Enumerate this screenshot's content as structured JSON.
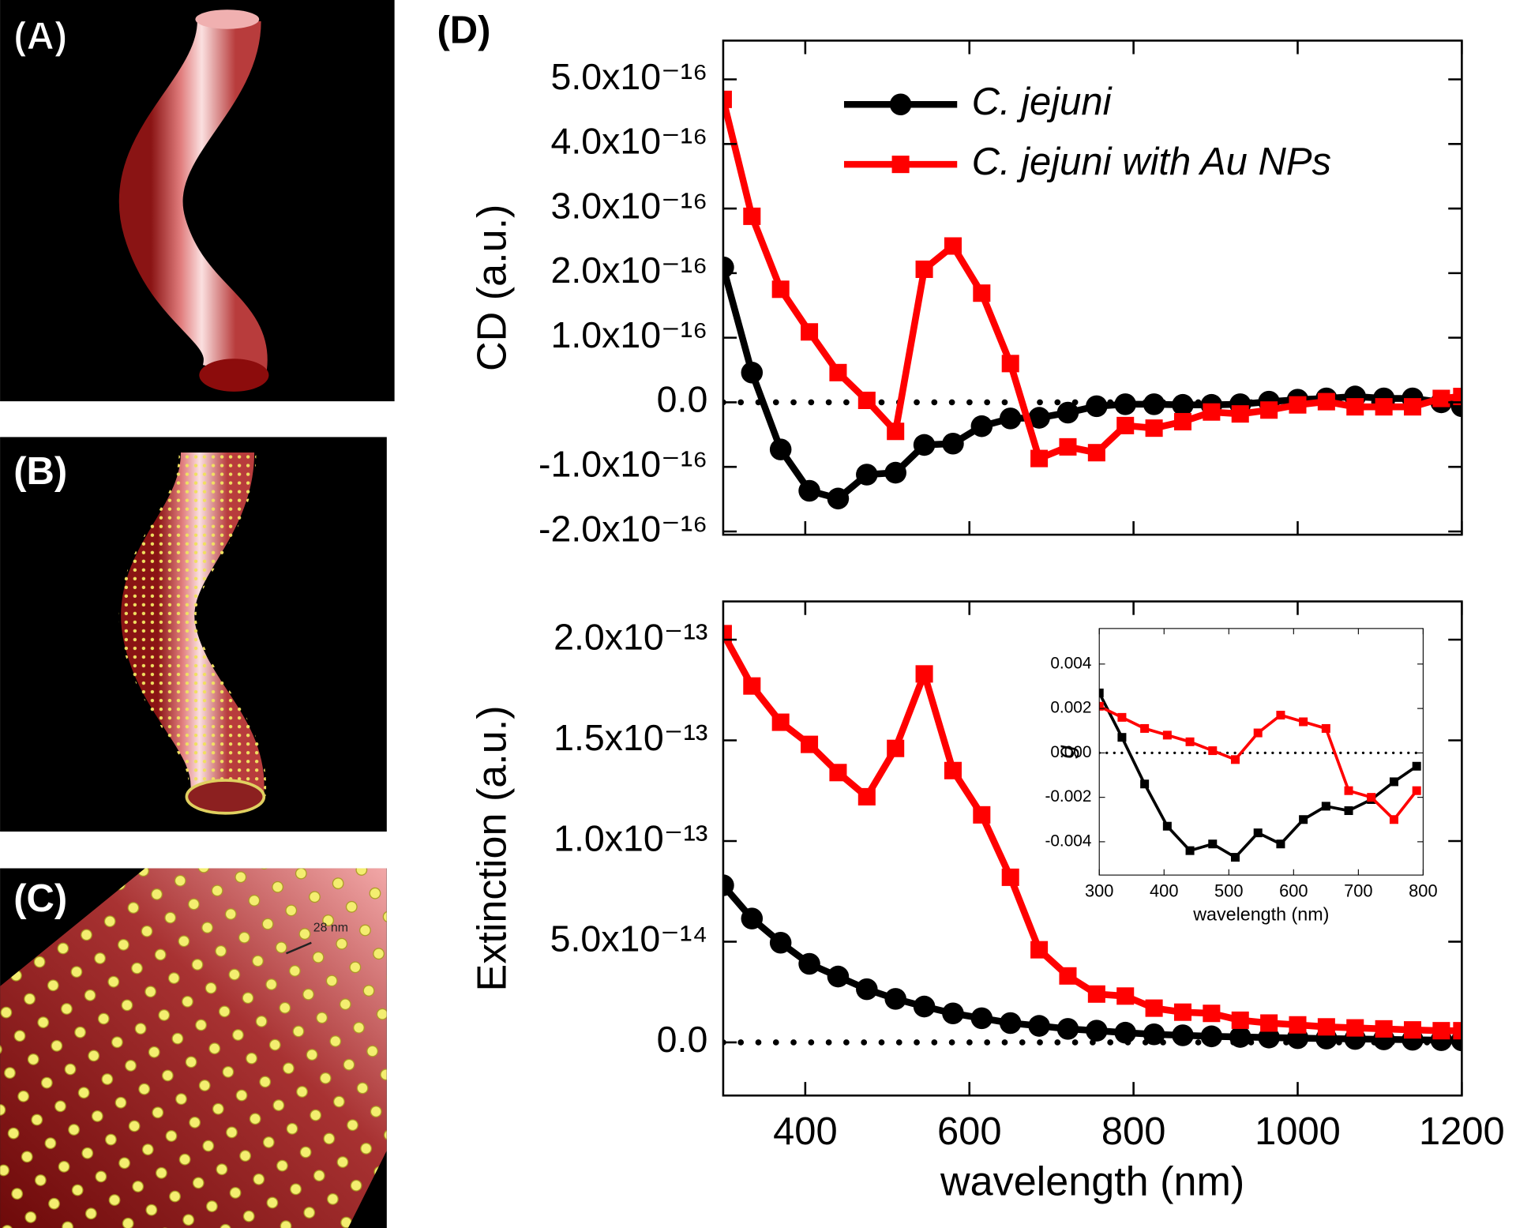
{
  "panels": {
    "labels": [
      "(A)",
      "(B)",
      "(C)",
      "(D)"
    ],
    "scale_label": "28 nm"
  },
  "chart_data": [
    {
      "type": "line",
      "ylabel": "CD (a.u.)",
      "legend": "top",
      "zero_line": true,
      "xtick_labels": false,
      "xlim": [
        300,
        1200
      ],
      "xticks": [
        400,
        600,
        800,
        1000,
        1200
      ],
      "ylim": [
        -2.05e-16,
        5.6e-16
      ],
      "yticks": [
        {
          "value": -2e-16,
          "label": "-2.0x10⁻¹⁶"
        },
        {
          "value": -1e-16,
          "label": "-1.0x10⁻¹⁶"
        },
        {
          "value": 0,
          "label": "0.0"
        },
        {
          "value": 1e-16,
          "label": "1.0x10⁻¹⁶"
        },
        {
          "value": 2e-16,
          "label": "2.0x10⁻¹⁶"
        },
        {
          "value": 3e-16,
          "label": "3.0x10⁻¹⁶"
        },
        {
          "value": 4e-16,
          "label": "4.0x10⁻¹⁶"
        },
        {
          "value": 5e-16,
          "label": "5.0x10⁻¹⁶"
        }
      ],
      "x": [
        300,
        335,
        370,
        405,
        440,
        475,
        510,
        545,
        580,
        615,
        650,
        685,
        720,
        755,
        790,
        825,
        860,
        895,
        930,
        965,
        1000,
        1035,
        1070,
        1105,
        1140,
        1175,
        1200
      ],
      "series": [
        {
          "name": "C. jejuni",
          "color": "#000000",
          "marker": "circle",
          "values": [
            2.09e-16,
            4.6e-17,
            -7.3e-17,
            -1.37e-16,
            -1.49e-16,
            -1.12e-16,
            -1.09e-16,
            -6.6e-17,
            -6.4e-17,
            -3.7e-17,
            -2.5e-17,
            -2.4e-17,
            -1.6e-17,
            -6e-18,
            -3e-18,
            -3e-18,
            -4e-18,
            -4e-18,
            -3e-18,
            1e-18,
            4e-18,
            6e-18,
            9e-18,
            6e-18,
            6e-18,
            0,
            -6e-18
          ]
        },
        {
          "name": "C. jejuni with Au NPs",
          "color": "#ff0000",
          "marker": "square",
          "values": [
            4.69e-16,
            2.88e-16,
            1.75e-16,
            1.09e-16,
            4.6e-17,
            3e-18,
            -4.5e-17,
            2.06e-16,
            2.42e-16,
            1.69e-16,
            6e-17,
            -8.7e-17,
            -6.9e-17,
            -7.8e-17,
            -3.6e-17,
            -4e-17,
            -3e-17,
            -1.5e-17,
            -1.8e-17,
            -1.2e-17,
            -4e-18,
            1e-18,
            -7e-18,
            -7e-18,
            -7e-18,
            6e-18,
            9e-18
          ]
        }
      ]
    },
    {
      "type": "line",
      "ylabel": "Extinction (a.u.)",
      "xlabel": "wavelength (nm)",
      "zero_line": true,
      "xtick_labels": true,
      "xlim": [
        300,
        1200
      ],
      "xticks": [
        400,
        600,
        800,
        1000,
        1200
      ],
      "ylim": [
        -2.64e-14,
        2.19e-13
      ],
      "yticks": [
        {
          "value": 0,
          "label": "0.0"
        },
        {
          "value": 5e-14,
          "label": "5.0x10⁻¹⁴"
        },
        {
          "value": 1e-13,
          "label": "1.0x10⁻¹³"
        },
        {
          "value": 1.5e-13,
          "label": "1.5x10⁻¹³"
        },
        {
          "value": 2e-13,
          "label": "2.0x10⁻¹³"
        }
      ],
      "x": [
        300,
        335,
        370,
        405,
        440,
        475,
        510,
        545,
        580,
        615,
        650,
        685,
        720,
        755,
        790,
        825,
        860,
        895,
        930,
        965,
        1000,
        1035,
        1070,
        1105,
        1140,
        1175,
        1200
      ],
      "series": [
        {
          "color": "#000000",
          "marker": "circle",
          "values": [
            7.8e-14,
            6.15e-14,
            4.95e-14,
            3.9e-14,
            3.27e-14,
            2.64e-14,
            2.16e-14,
            1.78e-14,
            1.44e-14,
            1.2e-14,
            9.6e-15,
            8.2e-15,
            6.7e-15,
            5.8e-15,
            4.8e-15,
            4e-15,
            3.5e-15,
            3e-15,
            2.7e-15,
            2.4e-15,
            2.1e-15,
            1.9e-15,
            1.7e-15,
            1.5e-15,
            1.3e-15,
            1.1e-15,
            1e-15
          ]
        },
        {
          "color": "#ff0000",
          "marker": "square",
          "values": [
            2.03e-13,
            1.77e-13,
            1.59e-13,
            1.48e-13,
            1.34e-13,
            1.22e-13,
            1.46e-13,
            1.83e-13,
            1.35e-13,
            1.13e-13,
            8.2e-14,
            4.6e-14,
            3.3e-14,
            2.4e-14,
            2.3e-14,
            1.7e-14,
            1.5e-14,
            1.44e-14,
            1.1e-14,
            9.6e-15,
            8.7e-15,
            7.7e-15,
            7.2e-15,
            6.7e-15,
            6.2e-15,
            5.8e-15,
            5.8e-15
          ]
        }
      ]
    },
    {
      "type": "line",
      "ylabel": "g",
      "xlabel": "wavelength (nm)",
      "zero_line": true,
      "xtick_labels": true,
      "xlim": [
        300,
        800
      ],
      "xticks": [
        300,
        400,
        500,
        600,
        700,
        800
      ],
      "ylim": [
        -0.0055,
        0.0056
      ],
      "yticks": [
        {
          "value": -0.004,
          "label": "-0.004"
        },
        {
          "value": -0.002,
          "label": "-0.002"
        },
        {
          "value": 0,
          "label": "0.000"
        },
        {
          "value": 0.002,
          "label": "0.002"
        },
        {
          "value": 0.004,
          "label": "0.004"
        }
      ],
      "x": [
        300,
        335,
        370,
        405,
        440,
        475,
        510,
        545,
        580,
        615,
        650,
        685,
        720,
        755,
        790
      ],
      "series": [
        {
          "color": "#000000",
          "marker": "square",
          "values": [
            0.0027,
            0.0007,
            -0.0014,
            -0.0033,
            -0.0044,
            -0.0041,
            -0.0047,
            -0.0036,
            -0.0041,
            -0.003,
            -0.0024,
            -0.0026,
            -0.0021,
            -0.0013,
            -0.0006
          ]
        },
        {
          "color": "#ff0000",
          "marker": "square",
          "values": [
            0.0021,
            0.0016,
            0.0011,
            0.0008,
            0.0005,
            0.0001,
            -0.0003,
            0.0009,
            0.0017,
            0.0014,
            0.0011,
            -0.0017,
            -0.002,
            -0.003,
            -0.0017
          ]
        }
      ]
    }
  ]
}
